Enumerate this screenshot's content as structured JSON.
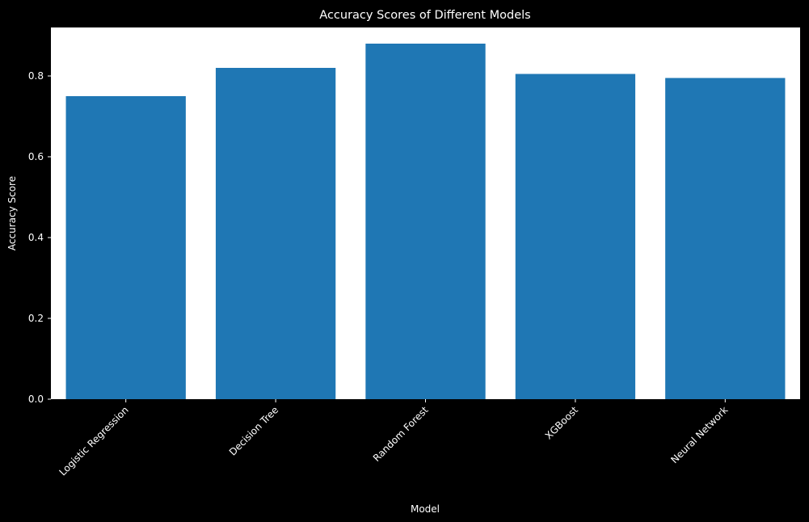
{
  "chart_data": {
    "type": "bar",
    "title": "Accuracy Scores of Different Models",
    "xlabel": "Model",
    "ylabel": "Accuracy Score",
    "categories": [
      "Logistic Regression",
      "Decision Tree",
      "Random Forest",
      "XGBoost",
      "Neural Network"
    ],
    "values": [
      0.75,
      0.82,
      0.88,
      0.805,
      0.795
    ],
    "ylim": [
      0,
      0.92
    ],
    "yticks": [
      "0.0",
      "0.2",
      "0.4",
      "0.6",
      "0.8"
    ],
    "grid": false,
    "legend": "none",
    "colors": {
      "bar": "#1f77b4",
      "plot_background": "#ffffff",
      "figure_background": "#000000",
      "text": "#ffffff"
    }
  }
}
